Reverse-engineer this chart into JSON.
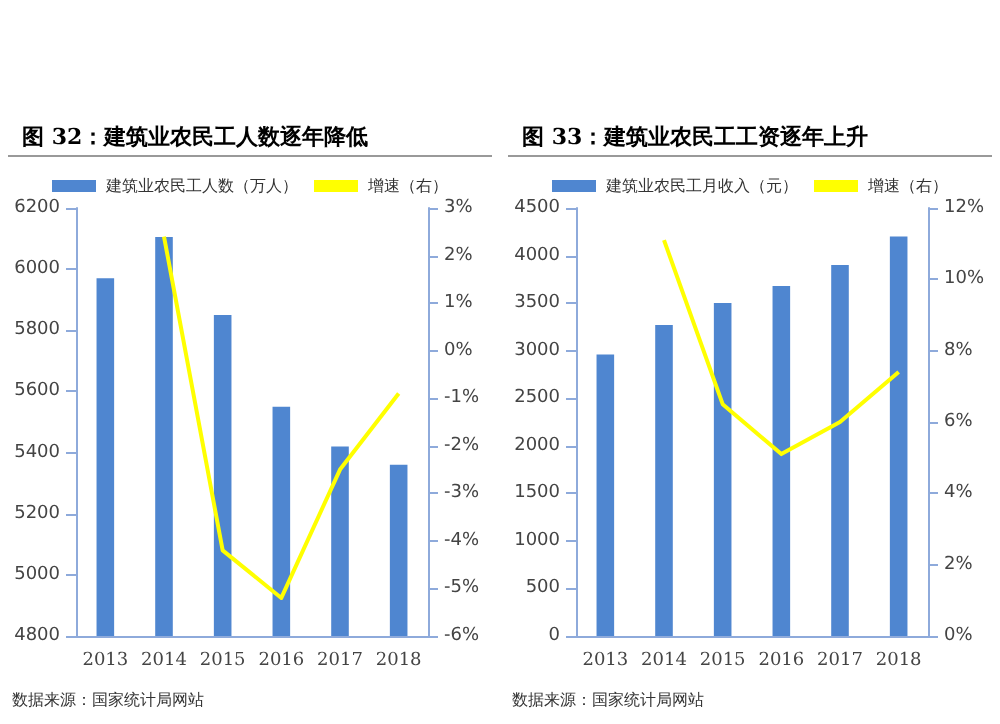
{
  "chart_data": [
    {
      "type": "bar",
      "title": "图 32：建筑业农民工人数逐年降低",
      "categories": [
        "2013",
        "2014",
        "2015",
        "2016",
        "2017",
        "2018"
      ],
      "series": [
        {
          "name": "建筑业农民工人数（万人）",
          "color": "#4f86d0",
          "values": [
            5970,
            6105,
            5850,
            5550,
            5420,
            5360
          ]
        },
        {
          "name": "增速（右）",
          "type": "line",
          "axis": "y2",
          "color": "#ffff00",
          "marker": "none",
          "values": [
            null,
            2.4,
            -4.2,
            -5.2,
            -2.5,
            -0.9
          ]
        }
      ],
      "ylim": [
        4800,
        6200
      ],
      "yticks": [
        4800,
        5000,
        5200,
        5400,
        5600,
        5800,
        6000,
        6200
      ],
      "y2lim": [
        -6,
        3
      ],
      "y2ticks": [
        {
          "value": -6,
          "label": "-6%"
        },
        {
          "value": -5,
          "label": "-5%"
        },
        {
          "value": -4,
          "label": "-4%"
        },
        {
          "value": -3,
          "label": "-3%"
        },
        {
          "value": -2,
          "label": "-2%"
        },
        {
          "value": -1,
          "label": "-1%"
        },
        {
          "value": 0,
          "label": "0%"
        },
        {
          "value": 1,
          "label": "1%"
        },
        {
          "value": 2,
          "label": "2%"
        },
        {
          "value": 3,
          "label": "3%"
        }
      ],
      "legend": "top",
      "annotations": [
        "数据来源：国家统计局网站"
      ]
    },
    {
      "type": "bar",
      "title": "图 33：建筑业农民工工资逐年上升",
      "categories": [
        "2013",
        "2014",
        "2015",
        "2016",
        "2017",
        "2018"
      ],
      "series": [
        {
          "name": "建筑业农民工月收入（元）",
          "color": "#4f86d0",
          "values": [
            2960,
            3270,
            3500,
            3680,
            3900,
            4200
          ]
        },
        {
          "name": "增速（右）",
          "type": "line",
          "axis": "y2",
          "color": "#ffff00",
          "marker": "none",
          "values": [
            null,
            11.1,
            6.5,
            5.1,
            6.0,
            7.4
          ]
        }
      ],
      "ylim": [
        0,
        4500
      ],
      "yticks": [
        0,
        500,
        1000,
        1500,
        2000,
        2500,
        3000,
        3500,
        4000,
        4500
      ],
      "y2lim": [
        0,
        12
      ],
      "y2ticks": [
        {
          "value": 0,
          "label": "0%"
        },
        {
          "value": 2,
          "label": "2%"
        },
        {
          "value": 4,
          "label": "4%"
        },
        {
          "value": 6,
          "label": "6%"
        },
        {
          "value": 8,
          "label": "8%"
        },
        {
          "value": 10,
          "label": "10%"
        },
        {
          "value": 12,
          "label": "12%"
        }
      ],
      "legend": "top",
      "annotations": [
        "数据来源：国家统计局网站"
      ]
    }
  ]
}
